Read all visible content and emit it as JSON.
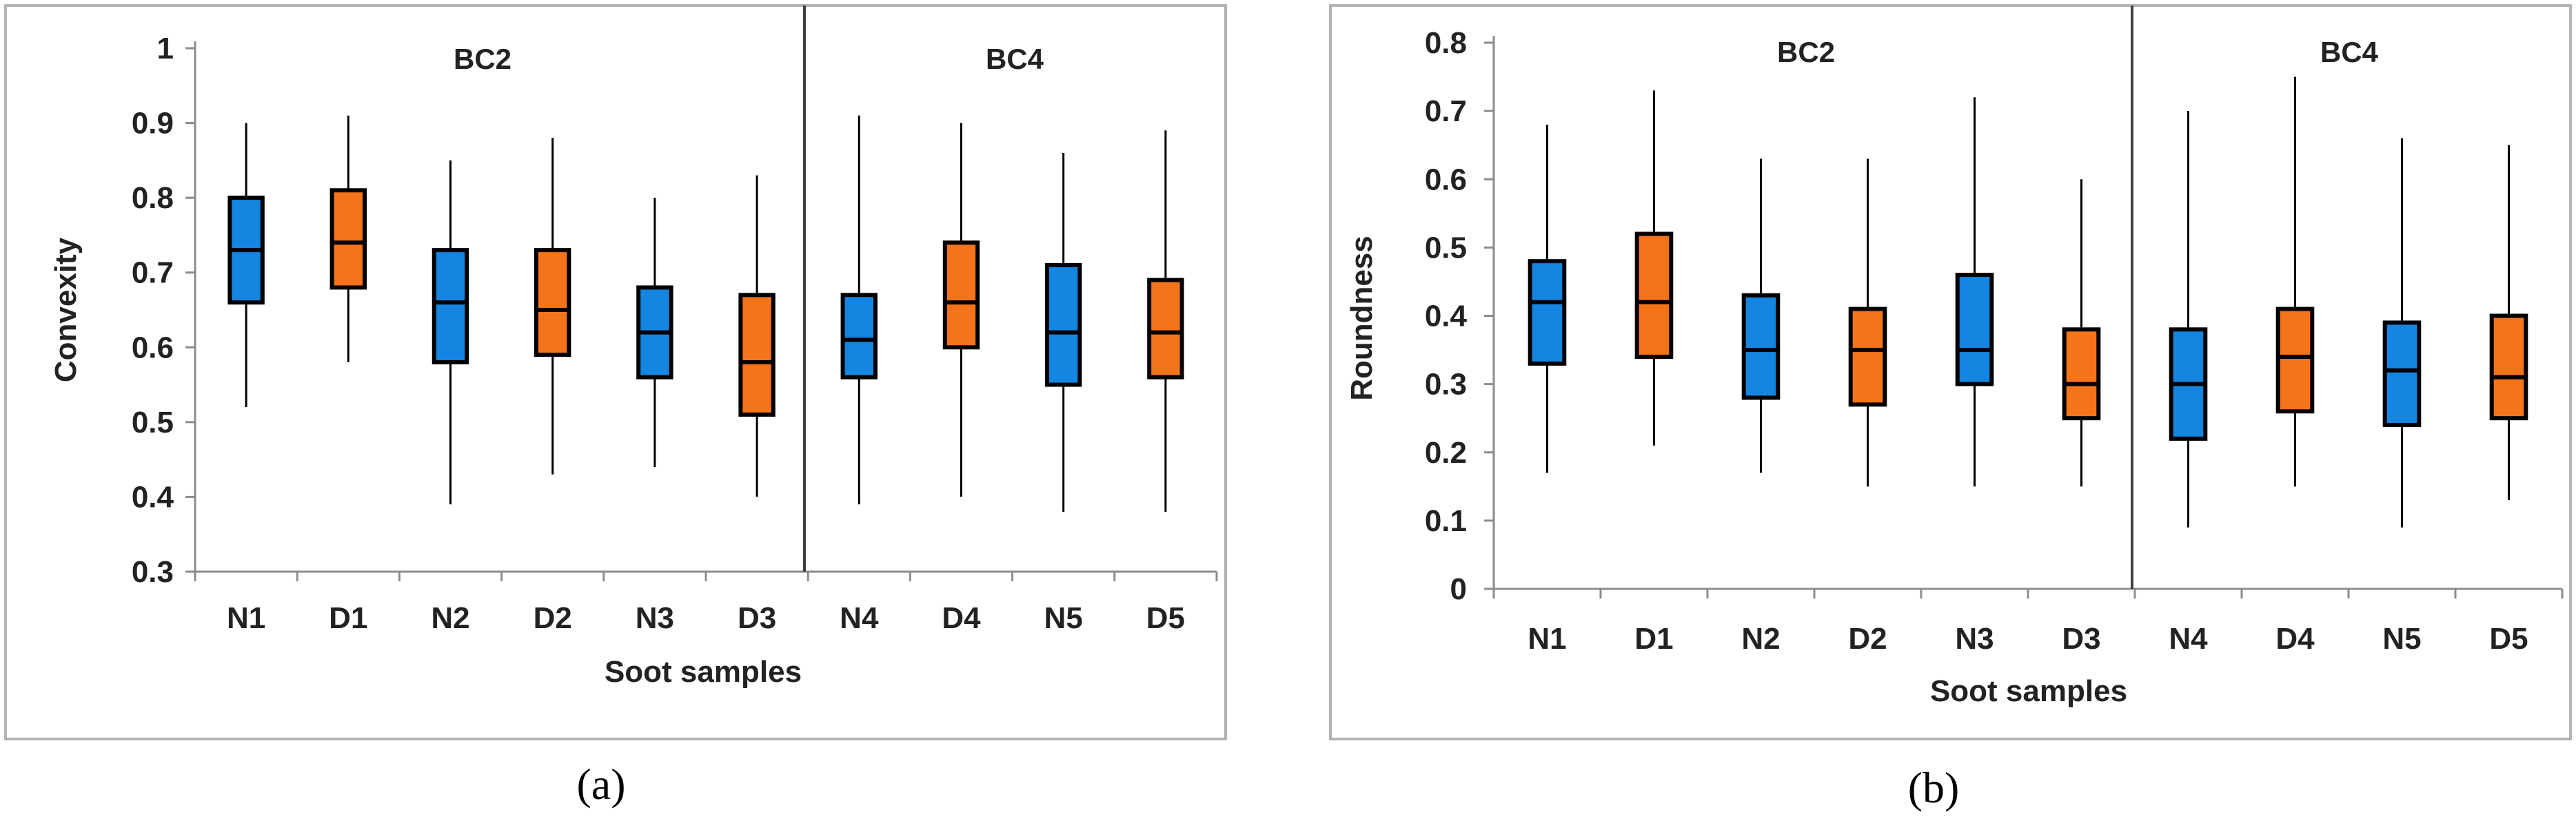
{
  "colors": {
    "N": "#1485e0",
    "D": "#f5741a"
  },
  "chart_data": [
    {
      "type": "box",
      "panel_label": "(a)",
      "xlabel": "Soot samples",
      "ylabel": "Convexity",
      "ylim": [
        0.3,
        1.0
      ],
      "yticks": [
        0.3,
        0.4,
        0.5,
        0.6,
        0.7,
        0.8,
        0.9,
        1
      ],
      "ytick_labels": [
        "0.3",
        "0.4",
        "0.5",
        "0.6",
        "0.7",
        "0.8",
        "0.9",
        "1"
      ],
      "categories": [
        "N1",
        "D1",
        "N2",
        "D2",
        "N3",
        "D3",
        "N4",
        "D4",
        "N5",
        "D5"
      ],
      "groups": [
        {
          "label": "BC2",
          "members": [
            "N1",
            "D1",
            "N2",
            "D2",
            "N3",
            "D3"
          ]
        },
        {
          "label": "BC4",
          "members": [
            "N4",
            "D4",
            "N5",
            "D5"
          ]
        }
      ],
      "boxes": [
        {
          "name": "N1",
          "min": 0.52,
          "q1": 0.66,
          "median": 0.73,
          "q3": 0.8,
          "max": 0.9
        },
        {
          "name": "D1",
          "min": 0.58,
          "q1": 0.68,
          "median": 0.74,
          "q3": 0.81,
          "max": 0.91
        },
        {
          "name": "N2",
          "min": 0.39,
          "q1": 0.58,
          "median": 0.66,
          "q3": 0.73,
          "max": 0.85
        },
        {
          "name": "D2",
          "min": 0.43,
          "q1": 0.59,
          "median": 0.65,
          "q3": 0.73,
          "max": 0.88
        },
        {
          "name": "N3",
          "min": 0.44,
          "q1": 0.56,
          "median": 0.62,
          "q3": 0.68,
          "max": 0.8
        },
        {
          "name": "D3",
          "min": 0.4,
          "q1": 0.51,
          "median": 0.58,
          "q3": 0.67,
          "max": 0.83
        },
        {
          "name": "N4",
          "min": 0.39,
          "q1": 0.56,
          "median": 0.61,
          "q3": 0.67,
          "max": 0.91
        },
        {
          "name": "D4",
          "min": 0.4,
          "q1": 0.6,
          "median": 0.66,
          "q3": 0.74,
          "max": 0.9
        },
        {
          "name": "N5",
          "min": 0.38,
          "q1": 0.55,
          "median": 0.62,
          "q3": 0.71,
          "max": 0.86
        },
        {
          "name": "D5",
          "min": 0.38,
          "q1": 0.56,
          "median": 0.62,
          "q3": 0.69,
          "max": 0.89
        }
      ]
    },
    {
      "type": "box",
      "panel_label": "(b)",
      "xlabel": "Soot samples",
      "ylabel": "Roundness",
      "ylim": [
        0,
        0.8
      ],
      "yticks": [
        0,
        0.1,
        0.2,
        0.3,
        0.4,
        0.5,
        0.6,
        0.7,
        0.8
      ],
      "ytick_labels": [
        "0",
        "0.1",
        "0.2",
        "0.3",
        "0.4",
        "0.5",
        "0.6",
        "0.7",
        "0.8"
      ],
      "categories": [
        "N1",
        "D1",
        "N2",
        "D2",
        "N3",
        "D3",
        "N4",
        "D4",
        "N5",
        "D5"
      ],
      "groups": [
        {
          "label": "BC2",
          "members": [
            "N1",
            "D1",
            "N2",
            "D2",
            "N3",
            "D3"
          ]
        },
        {
          "label": "BC4",
          "members": [
            "N4",
            "D4",
            "N5",
            "D5"
          ]
        }
      ],
      "boxes": [
        {
          "name": "N1",
          "min": 0.17,
          "q1": 0.33,
          "median": 0.42,
          "q3": 0.48,
          "max": 0.68
        },
        {
          "name": "D1",
          "min": 0.21,
          "q1": 0.34,
          "median": 0.42,
          "q3": 0.52,
          "max": 0.73
        },
        {
          "name": "N2",
          "min": 0.17,
          "q1": 0.28,
          "median": 0.35,
          "q3": 0.43,
          "max": 0.63
        },
        {
          "name": "D2",
          "min": 0.15,
          "q1": 0.27,
          "median": 0.35,
          "q3": 0.41,
          "max": 0.63
        },
        {
          "name": "N3",
          "min": 0.15,
          "q1": 0.3,
          "median": 0.35,
          "q3": 0.46,
          "max": 0.72
        },
        {
          "name": "D3",
          "min": 0.15,
          "q1": 0.25,
          "median": 0.3,
          "q3": 0.38,
          "max": 0.6
        },
        {
          "name": "N4",
          "min": 0.09,
          "q1": 0.22,
          "median": 0.3,
          "q3": 0.38,
          "max": 0.7
        },
        {
          "name": "D4",
          "min": 0.15,
          "q1": 0.26,
          "median": 0.34,
          "q3": 0.41,
          "max": 0.75
        },
        {
          "name": "N5",
          "min": 0.09,
          "q1": 0.24,
          "median": 0.32,
          "q3": 0.39,
          "max": 0.66
        },
        {
          "name": "D5",
          "min": 0.13,
          "q1": 0.25,
          "median": 0.31,
          "q3": 0.4,
          "max": 0.65
        }
      ]
    }
  ]
}
